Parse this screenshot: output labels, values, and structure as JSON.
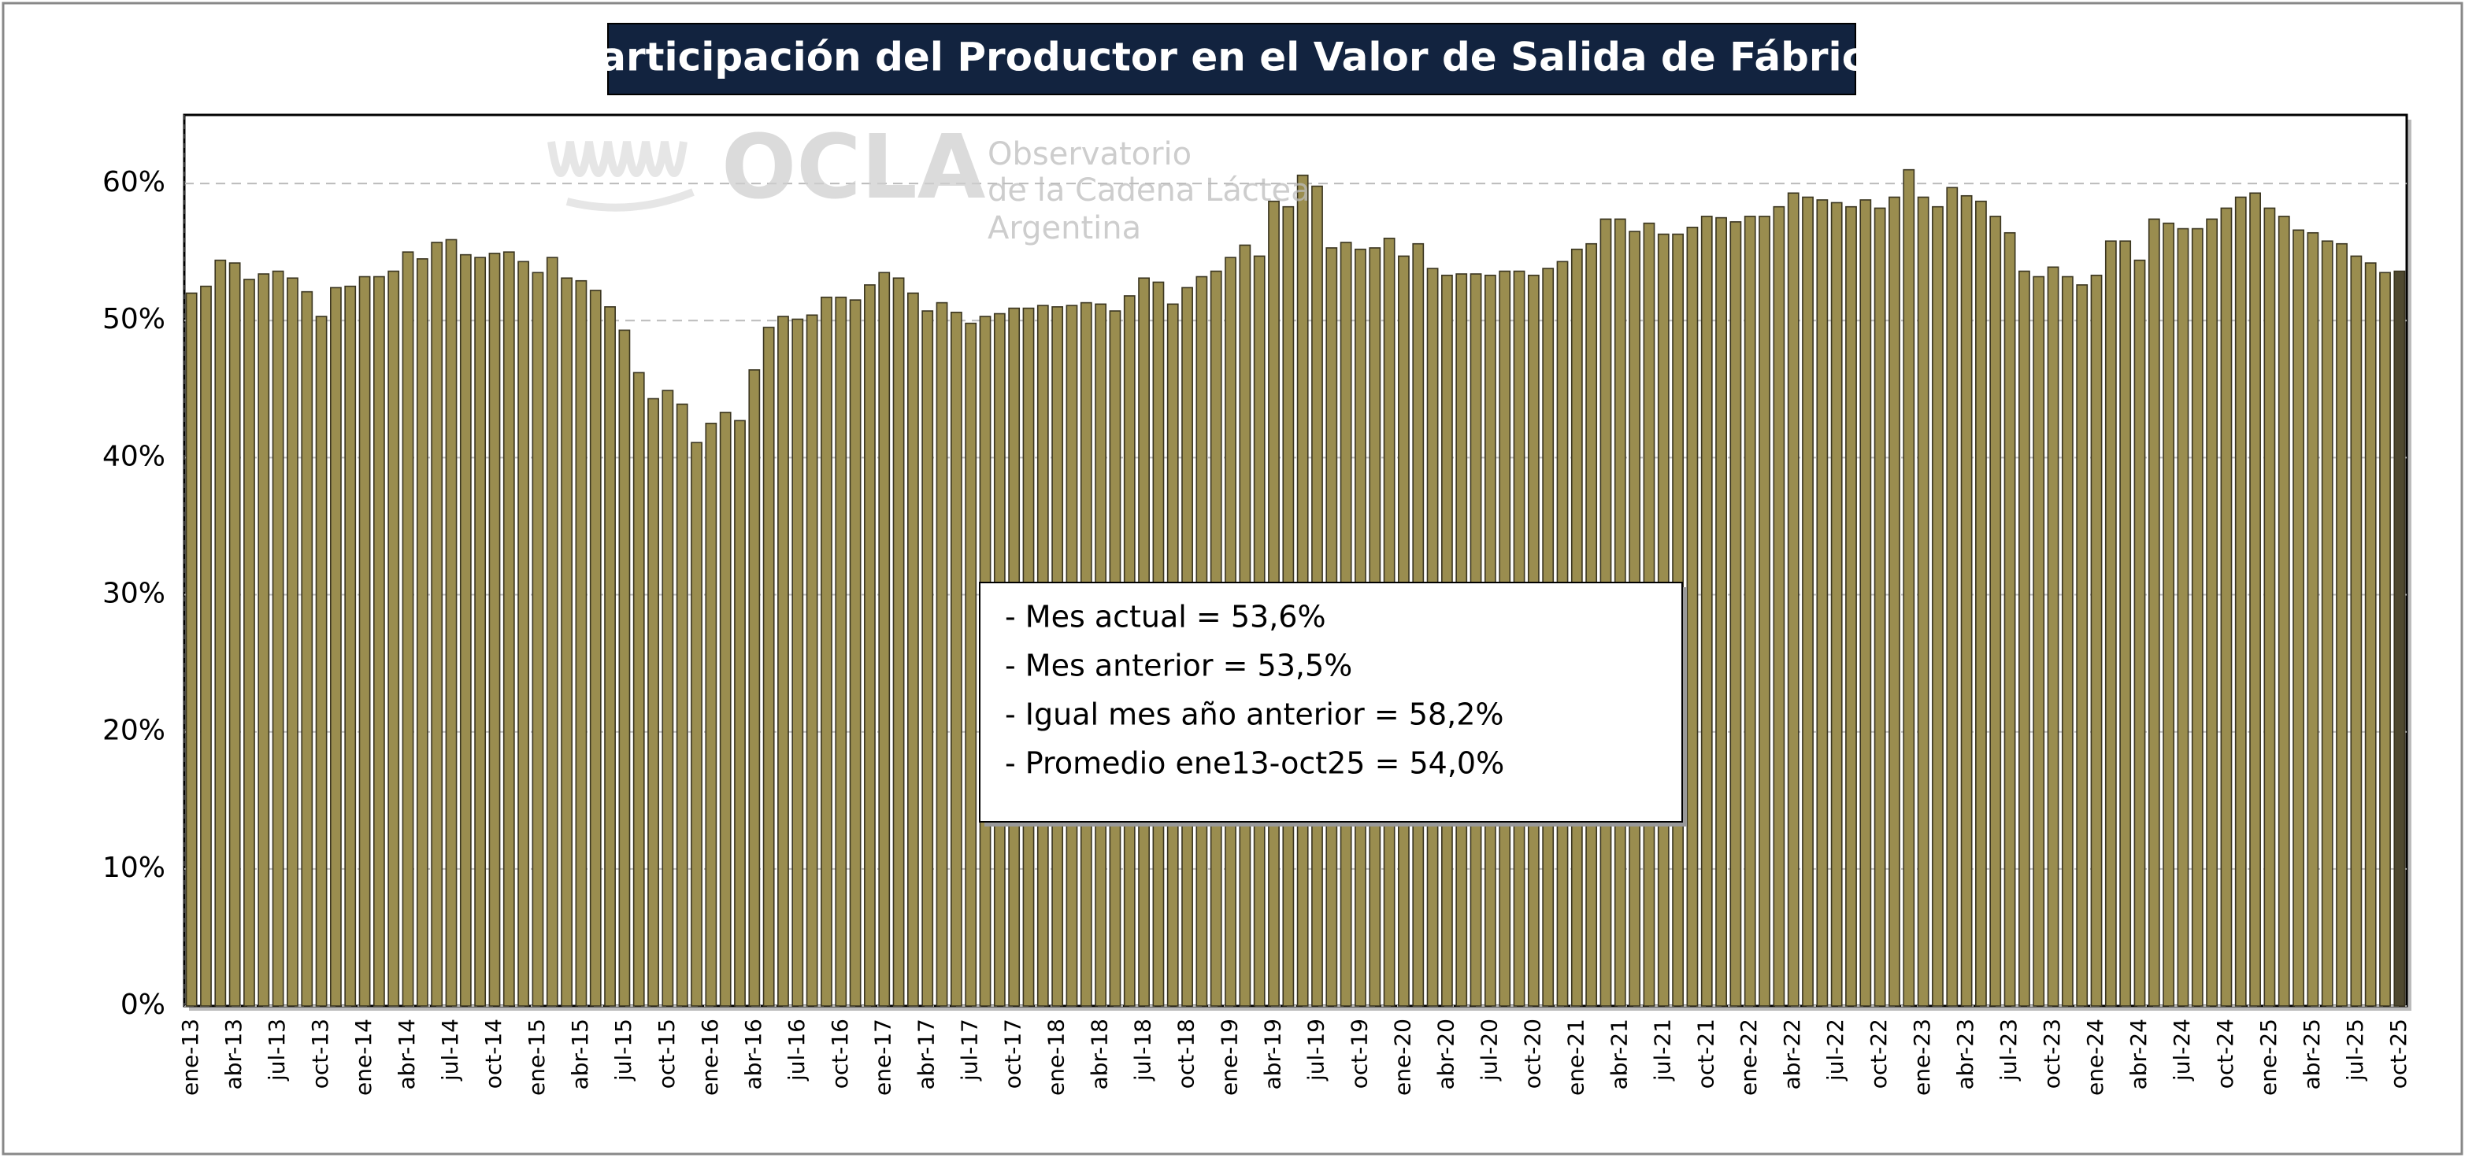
{
  "chart_data": {
    "type": "bar",
    "title": "Participación del Productor en el Valor de Salida de Fábrica",
    "watermark": {
      "logo": "OCLA",
      "lines": [
        "Observatorio",
        "de la Cadena Láctea",
        "Argentina"
      ]
    },
    "annotation": [
      "- Mes actual = 53,6%",
      "- Mes anterior = 53,5%",
      "- Igual mes año anterior = 58,2%",
      "- Promedio ene13-oct25 = 54,0%"
    ],
    "categories": [
      "ene-13",
      null,
      null,
      "abr-13",
      null,
      null,
      "jul-13",
      null,
      null,
      "oct-13",
      null,
      null,
      "ene-14",
      null,
      null,
      "abr-14",
      null,
      null,
      "jul-14",
      null,
      null,
      "oct-14",
      null,
      null,
      "ene-15",
      null,
      null,
      "abr-15",
      null,
      null,
      "jul-15",
      null,
      null,
      "oct-15",
      null,
      null,
      "ene-16",
      null,
      null,
      "abr-16",
      null,
      null,
      "jul-16",
      null,
      null,
      "oct-16",
      null,
      null,
      "ene-17",
      null,
      null,
      "abr-17",
      null,
      null,
      "jul-17",
      null,
      null,
      "oct-17",
      null,
      null,
      "ene-18",
      null,
      null,
      "abr-18",
      null,
      null,
      "jul-18",
      null,
      null,
      "oct-18",
      null,
      null,
      "ene-19",
      null,
      null,
      "abr-19",
      null,
      null,
      "jul-19",
      null,
      null,
      "oct-19",
      null,
      null,
      "ene-20",
      null,
      null,
      "abr-20",
      null,
      null,
      "jul-20",
      null,
      null,
      "oct-20",
      null,
      null,
      "ene-21",
      null,
      null,
      "abr-21",
      null,
      null,
      "jul-21",
      null,
      null,
      "oct-21",
      null,
      null,
      "ene-22",
      null,
      null,
      "abr-22",
      null,
      null,
      "jul-22",
      null,
      null,
      "oct-22",
      null,
      null,
      "ene-23",
      null,
      null,
      "abr-23",
      null,
      null,
      "jul-23",
      null,
      null,
      "oct-23",
      null,
      null,
      "ene-24",
      null,
      null,
      "abr-24",
      null,
      null,
      "jul-24",
      null,
      null,
      "oct-24",
      null,
      null,
      "ene-25",
      null,
      null,
      "abr-25",
      null,
      null,
      "jul-25",
      null,
      null,
      "oct-25"
    ],
    "values": [
      52.0,
      52.5,
      54.4,
      54.2,
      53.0,
      53.4,
      53.6,
      53.1,
      52.1,
      50.3,
      52.4,
      52.5,
      53.2,
      53.2,
      53.6,
      55.0,
      54.5,
      55.7,
      55.9,
      54.8,
      54.6,
      54.9,
      55.0,
      54.3,
      53.5,
      54.6,
      53.1,
      52.9,
      52.2,
      51.0,
      49.3,
      46.2,
      44.3,
      44.9,
      43.9,
      41.1,
      42.5,
      43.3,
      42.7,
      46.4,
      49.5,
      50.3,
      50.1,
      50.4,
      51.7,
      51.7,
      51.5,
      52.6,
      53.5,
      53.1,
      52.0,
      50.7,
      51.3,
      50.6,
      49.8,
      50.3,
      50.5,
      50.9,
      50.9,
      51.1,
      51.0,
      51.1,
      51.3,
      51.2,
      50.7,
      51.8,
      53.1,
      52.8,
      51.2,
      52.4,
      53.2,
      53.6,
      54.6,
      55.5,
      54.7,
      58.7,
      58.3,
      60.6,
      59.8,
      55.3,
      55.7,
      55.2,
      55.3,
      56.0,
      54.7,
      55.6,
      53.8,
      53.3,
      53.4,
      53.4,
      53.3,
      53.6,
      53.6,
      53.3,
      53.8,
      54.3,
      55.2,
      55.6,
      57.4,
      57.4,
      56.5,
      57.1,
      56.3,
      56.3,
      56.8,
      57.6,
      57.5,
      57.2,
      57.6,
      57.6,
      58.3,
      59.3,
      59.0,
      58.8,
      58.6,
      58.3,
      58.8,
      58.2,
      59.0,
      61.0,
      59.0,
      58.3,
      59.7,
      59.1,
      58.7,
      57.6,
      56.4,
      53.6,
      53.2,
      53.9,
      53.2,
      52.6,
      53.3,
      55.8,
      55.8,
      54.4,
      57.4,
      57.1,
      56.7,
      56.7,
      57.4,
      58.2,
      59.0,
      59.3,
      58.2,
      57.6,
      56.6,
      56.4,
      55.8,
      55.6,
      54.7,
      54.2,
      53.5,
      53.6
    ],
    "color": "#9a8d4f",
    "last_color": "#4f4930",
    "ylim": [
      0,
      65
    ],
    "yticks": [
      {
        "value": 0,
        "label": "0%"
      },
      {
        "value": 10,
        "label": "10%"
      },
      {
        "value": 20,
        "label": "20%"
      },
      {
        "value": 30,
        "label": "30%"
      },
      {
        "value": 40,
        "label": "40%"
      },
      {
        "value": 50,
        "label": "50%"
      },
      {
        "value": 60,
        "label": "60%"
      }
    ],
    "grid": true
  }
}
